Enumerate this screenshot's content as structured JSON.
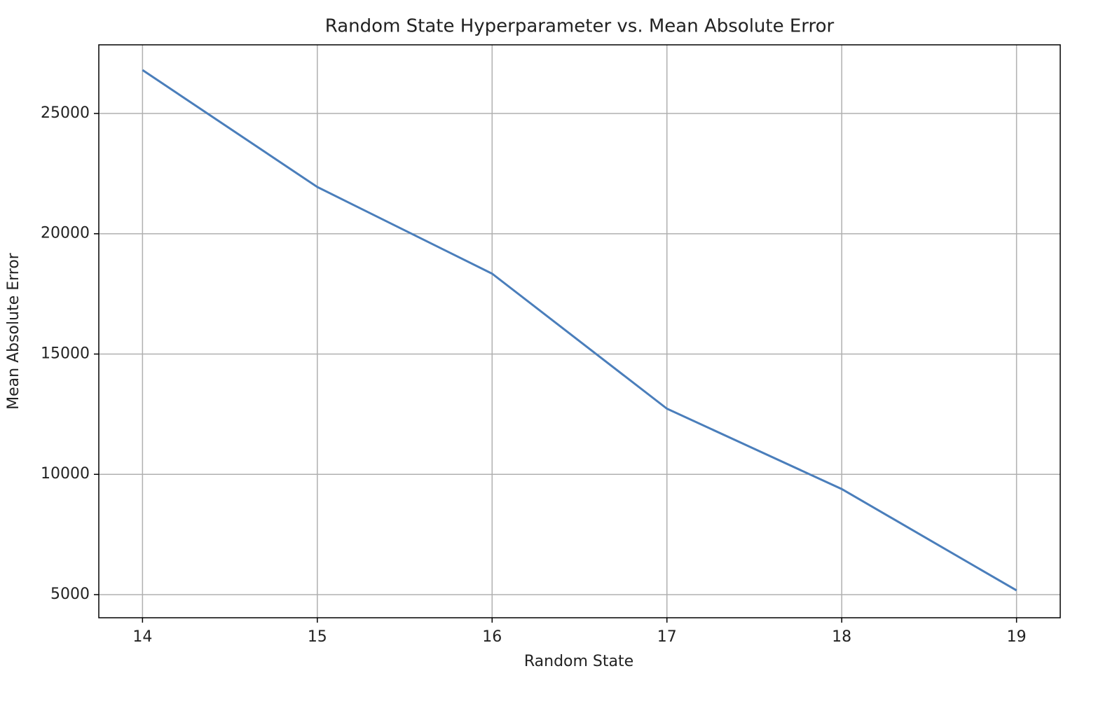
{
  "chart_data": {
    "type": "line",
    "title": "Random State Hyperparameter vs. Mean Absolute Error",
    "x_label": "Random State",
    "y_label": "Mean Absolute Error",
    "x": [
      14,
      15,
      16,
      17,
      18,
      19
    ],
    "series": [
      {
        "name": "Mean Absolute Error",
        "color": "#4a7ebb",
        "values": [
          26805,
          21943,
          18341,
          12729,
          9389,
          5175
        ]
      }
    ],
    "xlim": [
      13.75,
      19.25
    ],
    "xticks": [
      14,
      15,
      16,
      17,
      18,
      19
    ],
    "ylim": [
      4039,
      27853
    ],
    "yticks": [
      5000,
      10000,
      15000,
      20000,
      25000
    ],
    "grid": true
  }
}
